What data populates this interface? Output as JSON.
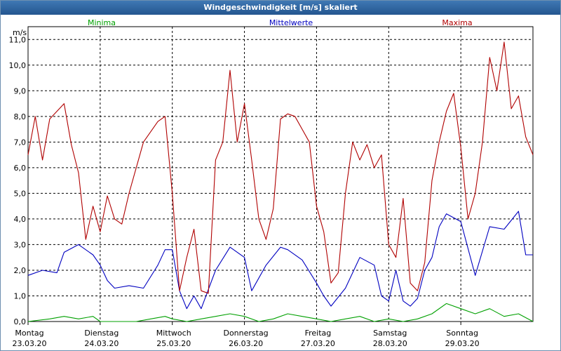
{
  "window": {
    "title": "Windgeschwindigkeit [m/s] skaliert"
  },
  "chart_data": {
    "type": "line",
    "ylabel": "m/s",
    "ylim": [
      0,
      11.5
    ],
    "yticks": [
      "0,0",
      "1,0",
      "2,0",
      "3,0",
      "4,0",
      "5,0",
      "6,0",
      "7,0",
      "8,0",
      "9,0",
      "10,0",
      "11,0"
    ],
    "ytick_values": [
      0,
      1,
      2,
      3,
      4,
      5,
      6,
      7,
      8,
      9,
      10,
      11
    ],
    "xlim": [
      0,
      7
    ],
    "days": [
      {
        "name": "Montag",
        "date": "23.03.20"
      },
      {
        "name": "Dienstag",
        "date": "24.03.20"
      },
      {
        "name": "Mittwoch",
        "date": "25.03.20"
      },
      {
        "name": "Donnerstag",
        "date": "26.03.20"
      },
      {
        "name": "Freitag",
        "date": "27.03.20"
      },
      {
        "name": "Samstag",
        "date": "28.03.20"
      },
      {
        "name": "Sonntag",
        "date": "29.03.20"
      }
    ],
    "grid": true,
    "series": [
      {
        "name": "Minima",
        "color": "#00a000",
        "x": [
          0,
          0.3,
          0.5,
          0.7,
          0.9,
          1.0,
          1.3,
          1.5,
          1.7,
          1.9,
          2.0,
          2.2,
          2.4,
          2.6,
          2.8,
          3.0,
          3.2,
          3.4,
          3.6,
          3.8,
          4.0,
          4.2,
          4.4,
          4.6,
          4.8,
          5.0,
          5.2,
          5.4,
          5.6,
          5.8,
          6.0,
          6.2,
          6.4,
          6.6,
          6.8,
          7.0
        ],
        "values": [
          0.0,
          0.1,
          0.2,
          0.1,
          0.2,
          0.0,
          0.0,
          0.0,
          0.1,
          0.2,
          0.1,
          0.0,
          0.1,
          0.2,
          0.3,
          0.2,
          0.0,
          0.1,
          0.3,
          0.2,
          0.1,
          0.0,
          0.1,
          0.2,
          0.0,
          0.1,
          0.0,
          0.1,
          0.3,
          0.7,
          0.5,
          0.3,
          0.5,
          0.2,
          0.3,
          0.0
        ]
      },
      {
        "name": "Mittelwerte",
        "color": "#0000c0",
        "x": [
          0,
          0.2,
          0.4,
          0.5,
          0.7,
          0.9,
          1.0,
          1.1,
          1.2,
          1.4,
          1.6,
          1.8,
          1.9,
          2.0,
          2.1,
          2.2,
          2.3,
          2.4,
          2.6,
          2.8,
          3.0,
          3.1,
          3.3,
          3.5,
          3.6,
          3.8,
          4.0,
          4.1,
          4.2,
          4.4,
          4.6,
          4.8,
          4.9,
          5.0,
          5.1,
          5.2,
          5.3,
          5.4,
          5.5,
          5.6,
          5.7,
          5.8,
          6.0,
          6.2,
          6.4,
          6.6,
          6.8,
          6.9,
          7.0
        ],
        "values": [
          1.8,
          2.0,
          1.9,
          2.7,
          3.0,
          2.6,
          2.2,
          1.6,
          1.3,
          1.4,
          1.3,
          2.2,
          2.8,
          2.8,
          1.2,
          0.5,
          1.0,
          0.5,
          2.0,
          2.9,
          2.5,
          1.2,
          2.2,
          2.9,
          2.8,
          2.4,
          1.5,
          1.0,
          0.6,
          1.3,
          2.5,
          2.2,
          1.0,
          0.8,
          2.0,
          0.8,
          0.6,
          0.9,
          2.0,
          2.5,
          3.7,
          4.2,
          3.9,
          1.8,
          3.7,
          3.6,
          4.3,
          2.6,
          2.6
        ]
      },
      {
        "name": "Maxima",
        "color": "#b00000",
        "x": [
          0,
          0.1,
          0.2,
          0.3,
          0.5,
          0.6,
          0.7,
          0.8,
          0.9,
          1.0,
          1.1,
          1.2,
          1.3,
          1.4,
          1.6,
          1.8,
          1.9,
          2.0,
          2.1,
          2.2,
          2.3,
          2.4,
          2.5,
          2.6,
          2.7,
          2.8,
          2.9,
          3.0,
          3.1,
          3.2,
          3.3,
          3.4,
          3.5,
          3.6,
          3.7,
          3.8,
          3.9,
          4.0,
          4.1,
          4.2,
          4.3,
          4.4,
          4.5,
          4.6,
          4.7,
          4.8,
          4.9,
          5.0,
          5.1,
          5.2,
          5.3,
          5.4,
          5.5,
          5.6,
          5.7,
          5.8,
          5.9,
          6.0,
          6.1,
          6.2,
          6.3,
          6.4,
          6.5,
          6.6,
          6.7,
          6.8,
          6.9,
          7.0
        ],
        "values": [
          6.5,
          8.0,
          6.3,
          7.9,
          8.5,
          6.9,
          5.8,
          3.2,
          4.5,
          3.5,
          4.9,
          4.0,
          3.8,
          5.0,
          7.0,
          7.8,
          8.0,
          5.0,
          1.2,
          2.5,
          3.6,
          1.2,
          1.1,
          6.3,
          7.0,
          9.8,
          7.0,
          8.5,
          6.3,
          4.0,
          3.2,
          4.4,
          7.9,
          8.1,
          8.0,
          7.5,
          7.0,
          4.5,
          3.5,
          1.5,
          1.9,
          5.0,
          7.0,
          6.3,
          6.9,
          6.0,
          6.5,
          3.0,
          2.5,
          4.8,
          1.5,
          1.2,
          2.3,
          5.5,
          7.0,
          8.2,
          8.9,
          6.8,
          4.0,
          5.0,
          7.0,
          10.3,
          9.0,
          10.9,
          8.3,
          8.8,
          7.2,
          6.5
        ]
      }
    ]
  }
}
